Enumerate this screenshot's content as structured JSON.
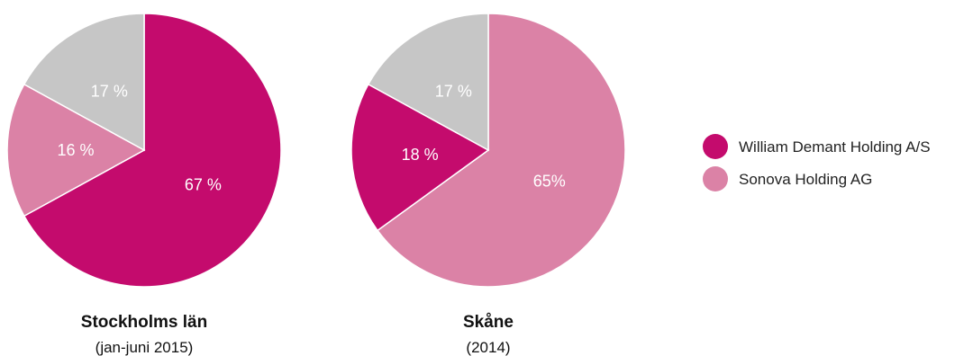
{
  "colors": {
    "william_demant": "#c40b6d",
    "sonova": "#db82a6",
    "other": "#c6c6c6"
  },
  "legend": [
    {
      "label": "William Demant Holding A/S",
      "color": "#c40b6d"
    },
    {
      "label": "Sonova Holding AG",
      "color": "#db82a6"
    }
  ],
  "chart_data": [
    {
      "type": "pie",
      "title": "Stockholms län",
      "subtitle": "(jan-juni 2015)",
      "slices": [
        {
          "label": "67 %",
          "value": 67,
          "color": "#c40b6d"
        },
        {
          "label": "16 %",
          "value": 16,
          "color": "#db82a6"
        },
        {
          "label": "17 %",
          "value": 17,
          "color": "#c6c6c6"
        }
      ]
    },
    {
      "type": "pie",
      "title": "Skåne",
      "subtitle": "(2014)",
      "slices": [
        {
          "label": "65%",
          "value": 65,
          "color": "#db82a6"
        },
        {
          "label": "18 %",
          "value": 18,
          "color": "#c40b6d"
        },
        {
          "label": "17 %",
          "value": 17,
          "color": "#c6c6c6"
        }
      ]
    }
  ]
}
